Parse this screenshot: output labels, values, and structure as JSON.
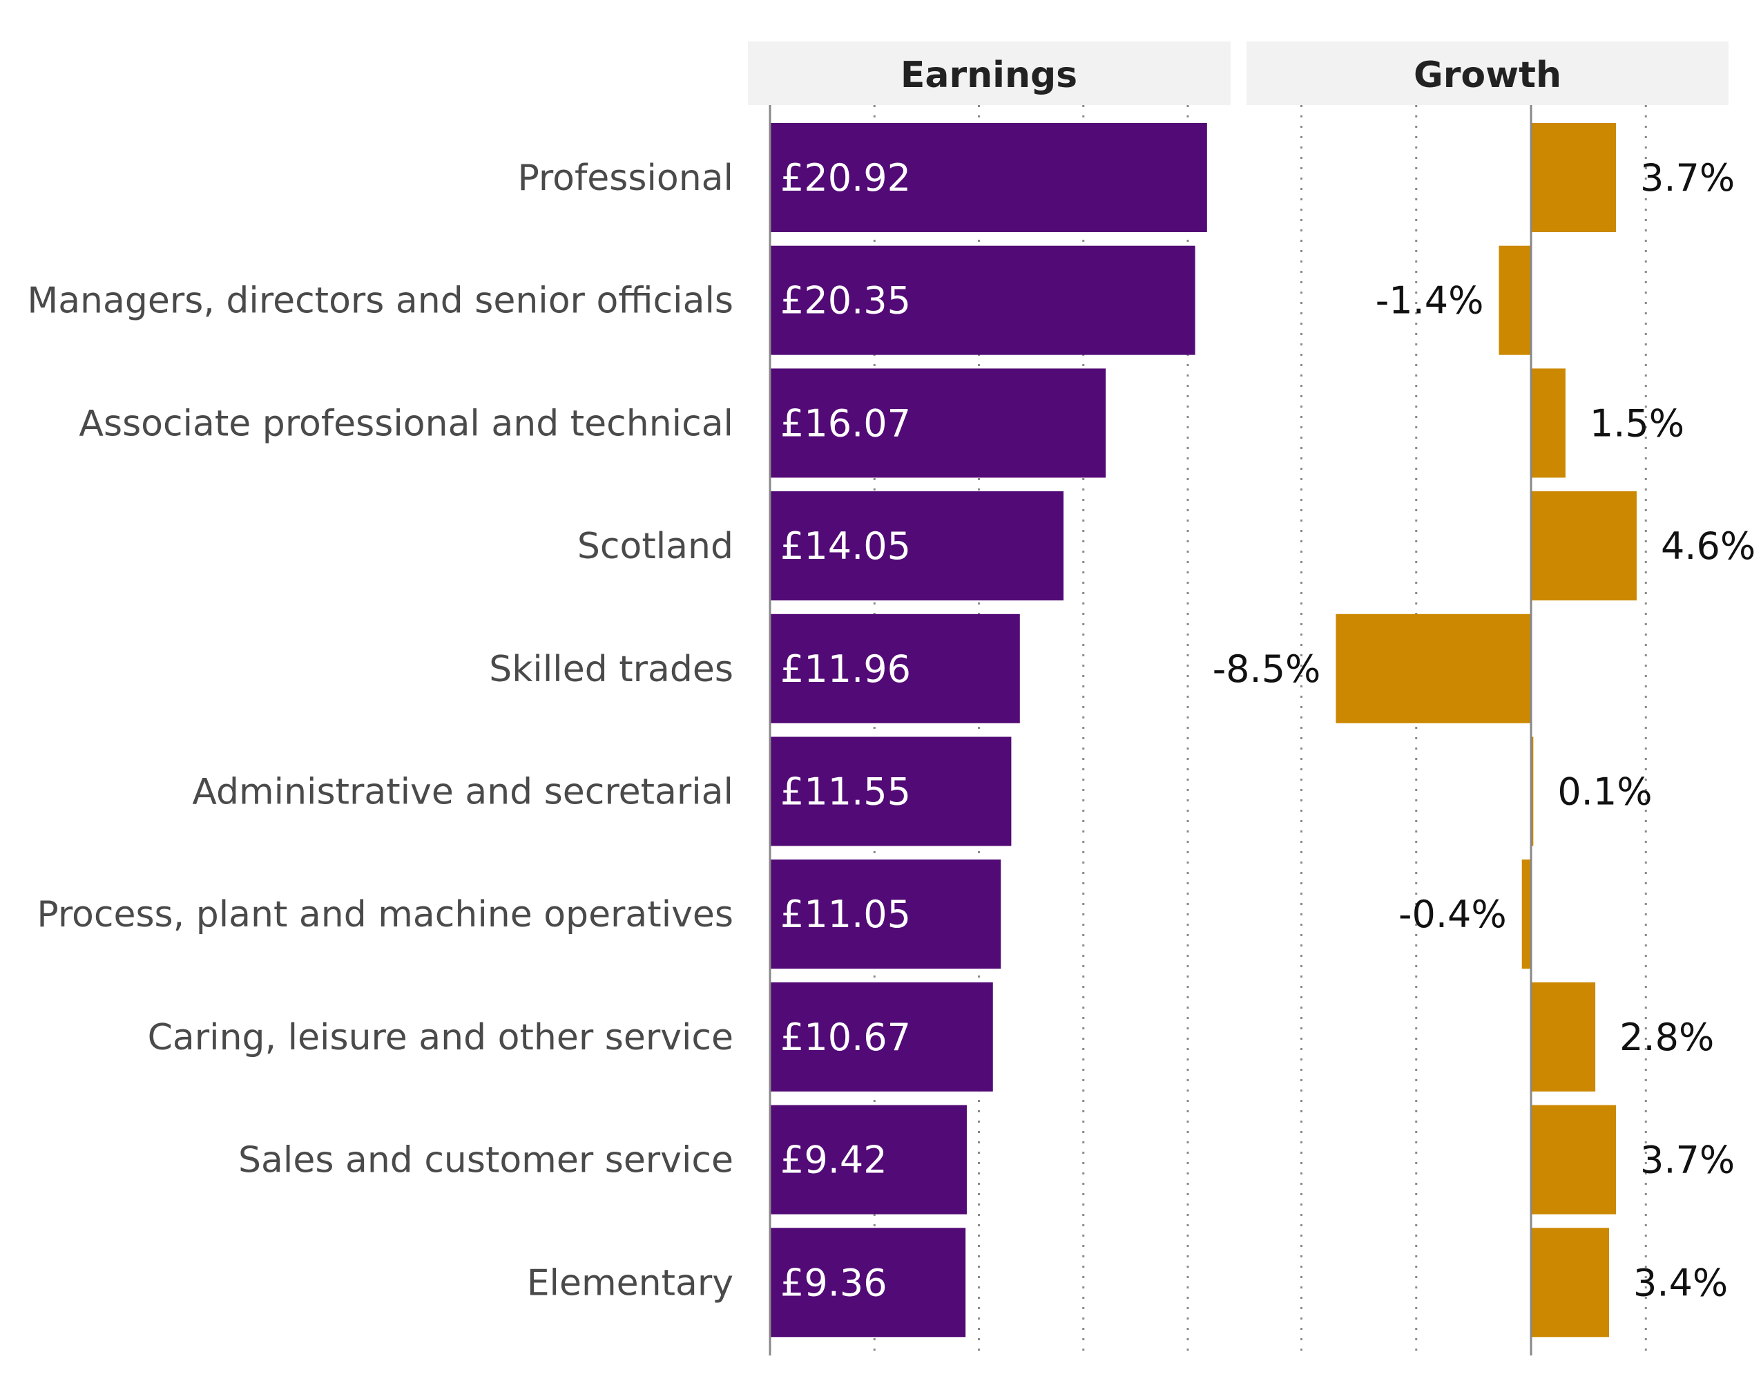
{
  "chart_data": {
    "type": "bar",
    "categories": [
      "Professional",
      "Managers, directors and senior officials",
      "Associate professional and technical",
      "Scotland",
      "Skilled trades",
      "Administrative and secretarial",
      "Process, plant and machine operatives",
      "Caring, leisure and other service",
      "Sales and customer service",
      "Elementary"
    ],
    "panels": [
      {
        "title": "Earnings",
        "values": [
          20.92,
          20.35,
          16.07,
          14.05,
          11.96,
          11.55,
          11.05,
          10.67,
          9.42,
          9.36
        ],
        "labels": [
          "£20.92",
          "£20.35",
          "£16.07",
          "£14.05",
          "£11.96",
          "£11.55",
          "£11.05",
          "£10.67",
          "£9.42",
          "£9.36"
        ],
        "xlim": [
          0,
          23
        ],
        "gridlines": [
          5,
          10,
          15,
          20
        ],
        "color": "#520a76"
      },
      {
        "title": "Growth",
        "values": [
          3.7,
          -1.4,
          1.5,
          4.6,
          -8.5,
          0.1,
          -0.4,
          2.8,
          3.7,
          3.4
        ],
        "labels": [
          "3.7%",
          "-1.4%",
          "1.5%",
          "4.6%",
          "-8.5%",
          "0.1%",
          "-0.4%",
          "2.8%",
          "3.7%",
          "3.4%"
        ],
        "xlim": [
          -10,
          8.7
        ],
        "gridlines": [
          -10,
          -5,
          5
        ],
        "color": "#cc8800"
      }
    ],
    "grid": true,
    "legend": "none"
  }
}
